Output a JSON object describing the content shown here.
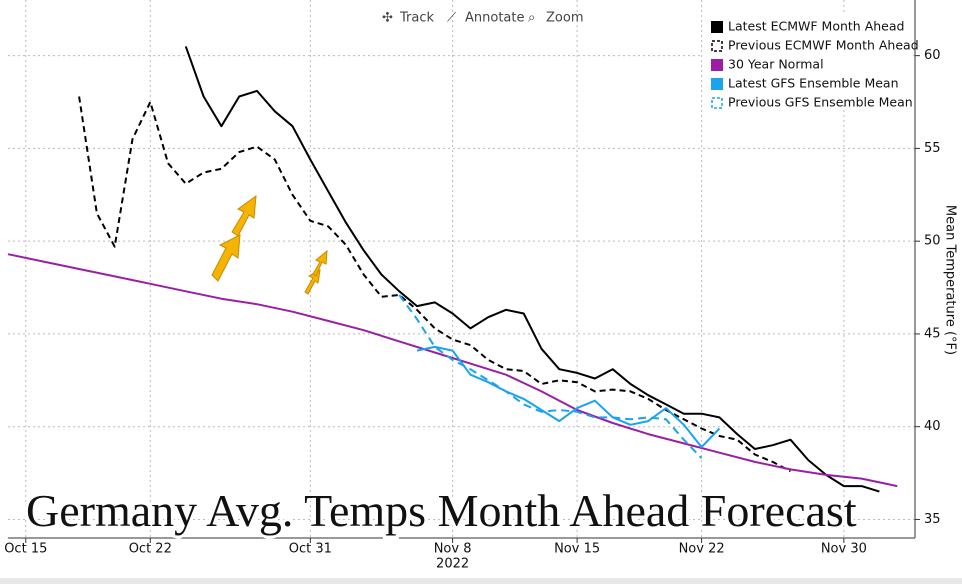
{
  "toolbar": [
    "Track",
    "Annotate",
    "Zoom"
  ],
  "chart_data": {
    "type": "line",
    "title": "Germany Avg. Temps Month Ahead Forecast",
    "ylabel": "Mean Temperature (°F)",
    "xlabel": "2022",
    "xlim": [
      "2022-10-14",
      "2022-12-04"
    ],
    "xticks": [
      {
        "value": "2022-10-15",
        "label": "Oct 15"
      },
      {
        "value": "2022-10-22",
        "label": "Oct 22"
      },
      {
        "value": "2022-10-31",
        "label": "Oct 31"
      },
      {
        "value": "2022-11-08",
        "label": "Nov 8"
      },
      {
        "value": "2022-11-15",
        "label": "Nov 15"
      },
      {
        "value": "2022-11-22",
        "label": "Nov 22"
      },
      {
        "value": "2022-11-30",
        "label": "Nov 30"
      }
    ],
    "ylim": [
      34,
      63
    ],
    "yticks": [
      35,
      40,
      45,
      50,
      55,
      60
    ],
    "grid": true,
    "legend": "top-right",
    "series": [
      {
        "name": "Latest ECMWF Month Ahead",
        "color": "#000000",
        "style": "solid",
        "x": [
          "2022-10-24",
          "2022-10-25",
          "2022-10-26",
          "2022-10-27",
          "2022-10-28",
          "2022-10-29",
          "2022-10-30",
          "2022-10-31",
          "2022-11-01",
          "2022-11-02",
          "2022-11-03",
          "2022-11-04",
          "2022-11-05",
          "2022-11-06",
          "2022-11-07",
          "2022-11-08",
          "2022-11-09",
          "2022-11-10",
          "2022-11-11",
          "2022-11-12",
          "2022-11-13",
          "2022-11-14",
          "2022-11-15",
          "2022-11-16",
          "2022-11-17",
          "2022-11-18",
          "2022-11-19",
          "2022-11-20",
          "2022-11-21",
          "2022-11-22",
          "2022-11-23",
          "2022-11-24",
          "2022-11-25",
          "2022-11-26",
          "2022-11-27",
          "2022-11-28",
          "2022-11-29",
          "2022-11-30",
          "2022-12-01",
          "2022-12-02"
        ],
        "values": [
          60.5,
          57.8,
          56.2,
          57.8,
          58.1,
          57.0,
          56.2,
          54.4,
          52.7,
          51.0,
          49.5,
          48.2,
          47.3,
          46.5,
          46.7,
          46.1,
          45.3,
          45.9,
          46.3,
          46.1,
          44.2,
          43.1,
          42.9,
          42.6,
          43.1,
          42.3,
          41.7,
          41.2,
          40.7,
          40.7,
          40.5,
          39.6,
          38.8,
          39.0,
          39.3,
          38.2,
          37.4,
          36.8,
          36.8,
          36.5
        ]
      },
      {
        "name": "Previous ECMWF Month Ahead",
        "color": "#000000",
        "style": "dashed",
        "x": [
          "2022-10-18",
          "2022-10-19",
          "2022-10-20",
          "2022-10-21",
          "2022-10-22",
          "2022-10-23",
          "2022-10-24",
          "2022-10-25",
          "2022-10-26",
          "2022-10-27",
          "2022-10-28",
          "2022-10-29",
          "2022-10-30",
          "2022-10-31",
          "2022-11-01",
          "2022-11-02",
          "2022-11-03",
          "2022-11-04",
          "2022-11-05",
          "2022-11-06",
          "2022-11-07",
          "2022-11-08",
          "2022-11-09",
          "2022-11-10",
          "2022-11-11",
          "2022-11-12",
          "2022-11-13",
          "2022-11-14",
          "2022-11-15",
          "2022-11-16",
          "2022-11-17",
          "2022-11-18",
          "2022-11-19",
          "2022-11-20",
          "2022-11-21",
          "2022-11-22",
          "2022-11-23",
          "2022-11-24",
          "2022-11-25",
          "2022-11-26",
          "2022-11-27"
        ],
        "values": [
          57.8,
          51.5,
          49.7,
          55.5,
          57.5,
          54.2,
          53.1,
          53.7,
          53.9,
          54.8,
          55.1,
          54.4,
          52.5,
          51.1,
          50.8,
          49.8,
          48.2,
          47.0,
          47.1,
          46.3,
          45.3,
          44.7,
          44.4,
          43.6,
          43.1,
          43.0,
          42.3,
          42.5,
          42.4,
          41.9,
          42.0,
          41.9,
          41.5,
          40.9,
          40.4,
          39.9,
          39.5,
          39.3,
          38.5,
          38.1,
          37.6
        ]
      },
      {
        "name": "30 Year Normal",
        "color": "#9b1fa5",
        "style": "solid",
        "x": [
          "2022-10-14",
          "2022-10-16",
          "2022-10-18",
          "2022-10-20",
          "2022-10-22",
          "2022-10-24",
          "2022-10-26",
          "2022-10-28",
          "2022-10-30",
          "2022-11-01",
          "2022-11-03",
          "2022-11-05",
          "2022-11-07",
          "2022-11-09",
          "2022-11-11",
          "2022-11-13",
          "2022-11-15",
          "2022-11-17",
          "2022-11-19",
          "2022-11-21",
          "2022-11-23",
          "2022-11-25",
          "2022-11-27",
          "2022-11-29",
          "2022-12-01",
          "2022-12-03"
        ],
        "values": [
          49.3,
          48.9,
          48.5,
          48.1,
          47.7,
          47.3,
          46.9,
          46.6,
          46.2,
          45.7,
          45.2,
          44.6,
          44.0,
          43.4,
          42.8,
          41.9,
          40.9,
          40.2,
          39.6,
          39.1,
          38.6,
          38.1,
          37.7,
          37.4,
          37.2,
          36.8
        ]
      },
      {
        "name": "Latest GFS Ensemble Mean",
        "color": "#1aa3ef",
        "style": "solid",
        "x": [
          "2022-11-06",
          "2022-11-07",
          "2022-11-08",
          "2022-11-09",
          "2022-11-10",
          "2022-11-11",
          "2022-11-12",
          "2022-11-13",
          "2022-11-14",
          "2022-11-15",
          "2022-11-16",
          "2022-11-17",
          "2022-11-18",
          "2022-11-19",
          "2022-11-20",
          "2022-11-21",
          "2022-11-22",
          "2022-11-23"
        ],
        "values": [
          44.1,
          44.3,
          44.1,
          42.8,
          42.4,
          41.9,
          41.5,
          40.9,
          40.3,
          41.0,
          41.4,
          40.5,
          40.1,
          40.3,
          41.0,
          40.1,
          38.9,
          39.9
        ]
      },
      {
        "name": "Previous GFS Ensemble Mean",
        "color": "#1aa3ef",
        "style": "dashed",
        "x": [
          "2022-11-05",
          "2022-11-06",
          "2022-11-07",
          "2022-11-08",
          "2022-11-09",
          "2022-11-10",
          "2022-11-11",
          "2022-11-12",
          "2022-11-13",
          "2022-11-14",
          "2022-11-15",
          "2022-11-16",
          "2022-11-17",
          "2022-11-18",
          "2022-11-19",
          "2022-11-20",
          "2022-11-21",
          "2022-11-22"
        ],
        "values": [
          47.1,
          45.8,
          44.3,
          43.6,
          43.1,
          42.5,
          41.9,
          41.2,
          40.8,
          40.9,
          40.8,
          40.5,
          40.5,
          40.4,
          40.5,
          40.4,
          39.3,
          38.3
        ]
      }
    ]
  }
}
